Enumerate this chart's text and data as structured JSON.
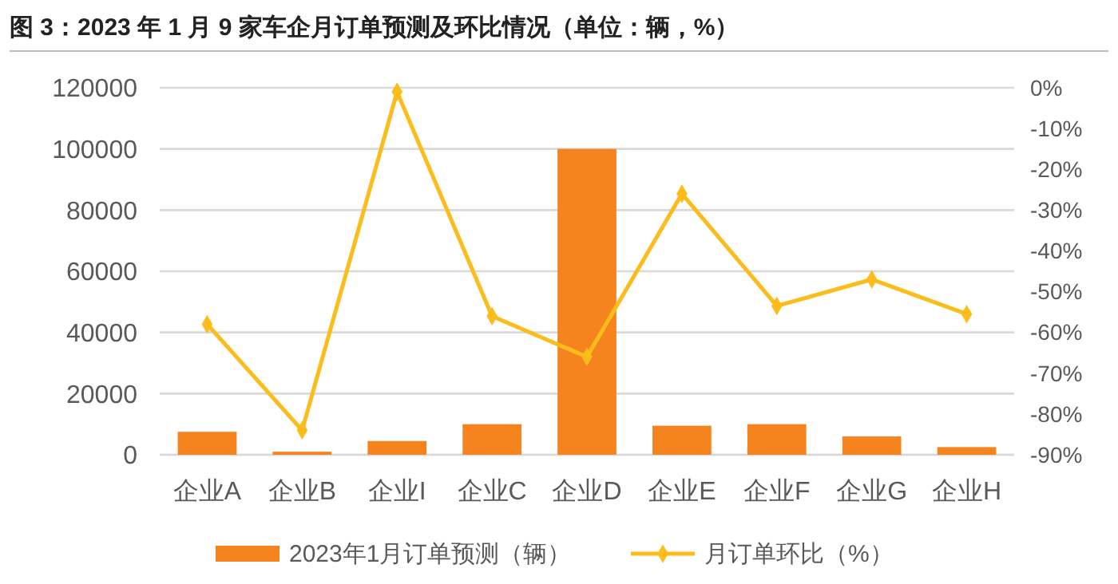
{
  "chart_data": {
    "type": "bar",
    "title": "图 3：2023 年 1 月 9 家车企月订单预测及环比情况（单位：辆，%）",
    "categories": [
      "企业A",
      "企业B",
      "企业I",
      "企业C",
      "企业D",
      "企业E",
      "企业F",
      "企业G",
      "企业H"
    ],
    "series": [
      {
        "name": "2023年1月订单预测（辆）",
        "color": "#f5841f",
        "values": [
          7500,
          1000,
          4500,
          10000,
          100000,
          9500,
          10000,
          6000,
          2500
        ]
      },
      {
        "name": "月订单环比（%）",
        "type": "line",
        "axis": "y2",
        "color": "#fbbc1c",
        "marker": "diamond",
        "values": [
          -58,
          -84,
          -1,
          -56,
          -66,
          -26,
          -53.5,
          -47,
          -55.5
        ]
      }
    ],
    "ylim": [
      0,
      120000
    ],
    "yticks": [
      0,
      20000,
      40000,
      60000,
      80000,
      100000,
      120000
    ],
    "y2lim": [
      -90,
      0
    ],
    "y2ticks": [
      {
        "value": -90,
        "label": "-90%"
      },
      {
        "value": -80,
        "label": "-80%"
      },
      {
        "value": -70,
        "label": "-70%"
      },
      {
        "value": -60,
        "label": "-60%"
      },
      {
        "value": -50,
        "label": "-50%"
      },
      {
        "value": -40,
        "label": "-40%"
      },
      {
        "value": -30,
        "label": "-30%"
      },
      {
        "value": -20,
        "label": "-20%"
      },
      {
        "value": -10,
        "label": "-10%"
      },
      {
        "value": 0,
        "label": "0%"
      }
    ],
    "grid": "y",
    "legend": "bottom"
  }
}
